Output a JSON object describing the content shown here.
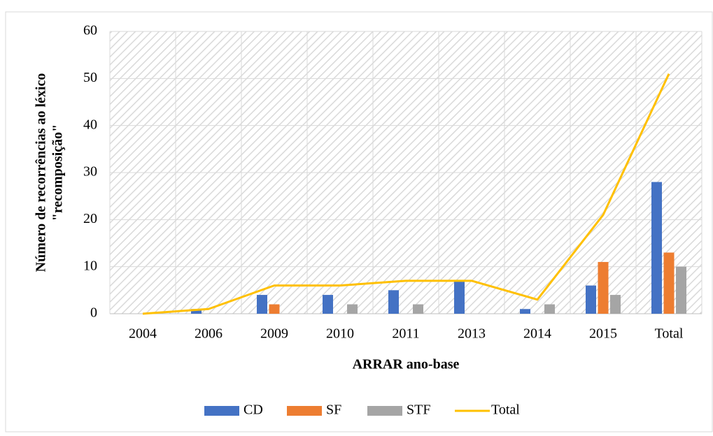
{
  "chart_data": {
    "type": "bar_line",
    "y_label": [
      "Número de recorrências ao léxico",
      "\"recomposição\""
    ],
    "x_label": "ARRAR ano-base",
    "categories": [
      "2004",
      "2006",
      "2009",
      "2010",
      "2011",
      "2013",
      "2014",
      "2015",
      "Total"
    ],
    "series": [
      {
        "name": "CD",
        "type": "bar",
        "color": "#4472c4",
        "values": [
          0,
          1,
          4,
          4,
          5,
          7,
          1,
          6,
          28
        ]
      },
      {
        "name": "SF",
        "type": "bar",
        "color": "#ed7d31",
        "values": [
          0,
          0,
          2,
          0,
          0,
          0,
          0,
          11,
          13
        ]
      },
      {
        "name": "STF",
        "type": "bar",
        "color": "#a5a5a5",
        "values": [
          0,
          0,
          0,
          2,
          2,
          0,
          2,
          4,
          10
        ]
      },
      {
        "name": "Total",
        "type": "line",
        "color": "#ffc000",
        "values": [
          0,
          1,
          6,
          6,
          7,
          7,
          3,
          21,
          51
        ]
      }
    ],
    "ylim": [
      0,
      60
    ],
    "yticks": [
      0,
      10,
      20,
      30,
      40,
      50,
      60
    ],
    "grid": true,
    "legend": "bottom"
  }
}
